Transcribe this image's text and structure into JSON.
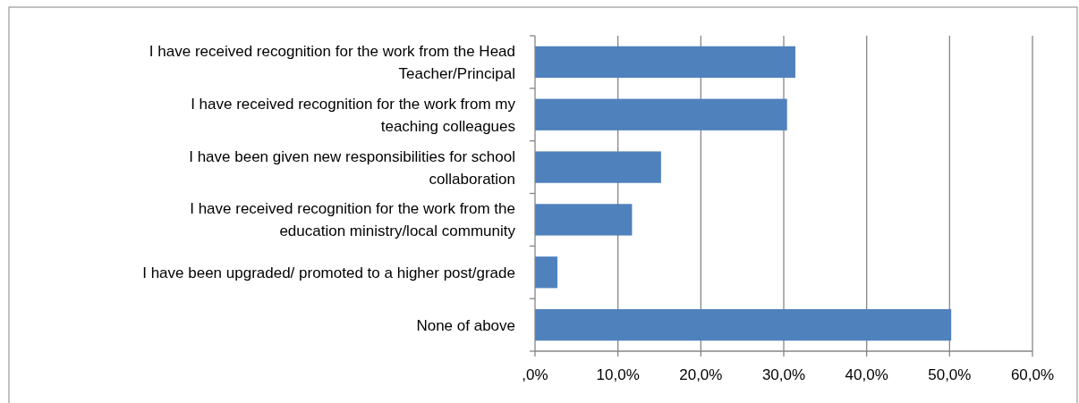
{
  "chart_data": {
    "type": "bar",
    "orientation": "horizontal",
    "categories": [
      "I have received recognition for the work from the Head Teacher/Principal",
      "I have received recognition for the work from my teaching colleagues",
      "I have been given new responsibilities for school collaboration",
      "I have received recognition for the work from the education ministry/local community",
      "I have been upgraded/ promoted to a higher post/grade",
      "None of above"
    ],
    "values": [
      31.4,
      30.4,
      15.2,
      11.7,
      2.7,
      50.2
    ],
    "color": "#4f81bd",
    "xlim": [
      0,
      60
    ],
    "xticks": [
      {
        "value": 0,
        "label": ",0%"
      },
      {
        "value": 10,
        "label": "10,0%"
      },
      {
        "value": 20,
        "label": "20,0%"
      },
      {
        "value": 30,
        "label": "30,0%"
      },
      {
        "value": 40,
        "label": "40,0%"
      },
      {
        "value": 50,
        "label": "50,0%"
      },
      {
        "value": 60,
        "label": "60,0%"
      }
    ],
    "grid": "x"
  }
}
